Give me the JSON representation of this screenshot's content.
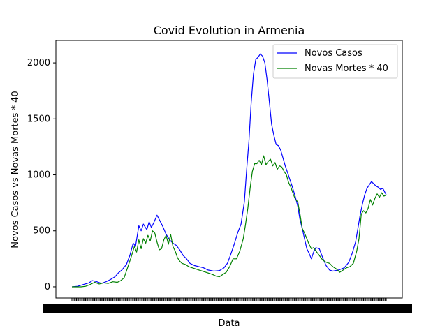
{
  "chart_data": {
    "type": "line",
    "title": "Covid Evolution in Armenia",
    "xlabel": "Data",
    "ylabel": "Novos Casos vs Novas Mortes * 40",
    "ylim": [
      -100,
      2200
    ],
    "yticks": [
      0,
      500,
      1000,
      1500,
      2000
    ],
    "x_range": [
      0,
      270
    ],
    "x_range_note": "x axis is day index; tick labels are dates rendered illegibly overlapping",
    "grid": false,
    "legend_position": "top-right",
    "series": [
      {
        "name": "Novos Casos",
        "color": "#0000ff",
        "points": [
          [
            0,
            0
          ],
          [
            5,
            5
          ],
          [
            10,
            20
          ],
          [
            15,
            35
          ],
          [
            18,
            55
          ],
          [
            22,
            45
          ],
          [
            26,
            30
          ],
          [
            30,
            45
          ],
          [
            34,
            65
          ],
          [
            38,
            90
          ],
          [
            41,
            125
          ],
          [
            44,
            150
          ],
          [
            48,
            200
          ],
          [
            51,
            280
          ],
          [
            54,
            390
          ],
          [
            56,
            360
          ],
          [
            59,
            545
          ],
          [
            61,
            500
          ],
          [
            63,
            560
          ],
          [
            66,
            510
          ],
          [
            68,
            580
          ],
          [
            70,
            530
          ],
          [
            72,
            570
          ],
          [
            75,
            640
          ],
          [
            77,
            600
          ],
          [
            80,
            540
          ],
          [
            83,
            470
          ],
          [
            86,
            420
          ],
          [
            89,
            390
          ],
          [
            92,
            370
          ],
          [
            95,
            330
          ],
          [
            98,
            280
          ],
          [
            101,
            250
          ],
          [
            104,
            210
          ],
          [
            108,
            190
          ],
          [
            112,
            180
          ],
          [
            116,
            170
          ],
          [
            120,
            150
          ],
          [
            125,
            140
          ],
          [
            130,
            145
          ],
          [
            134,
            170
          ],
          [
            137,
            210
          ],
          [
            140,
            290
          ],
          [
            143,
            380
          ],
          [
            146,
            480
          ],
          [
            149,
            560
          ],
          [
            152,
            760
          ],
          [
            154,
            1050
          ],
          [
            156,
            1300
          ],
          [
            158,
            1650
          ],
          [
            160,
            1900
          ],
          [
            162,
            2030
          ],
          [
            164,
            2050
          ],
          [
            166,
            2080
          ],
          [
            168,
            2060
          ],
          [
            170,
            2000
          ],
          [
            172,
            1850
          ],
          [
            174,
            1650
          ],
          [
            176,
            1450
          ],
          [
            178,
            1350
          ],
          [
            180,
            1270
          ],
          [
            182,
            1260
          ],
          [
            184,
            1220
          ],
          [
            186,
            1150
          ],
          [
            188,
            1080
          ],
          [
            190,
            1020
          ],
          [
            192,
            960
          ],
          [
            194,
            900
          ],
          [
            197,
            800
          ],
          [
            199,
            720
          ],
          [
            201,
            600
          ],
          [
            203,
            520
          ],
          [
            205,
            430
          ],
          [
            207,
            340
          ],
          [
            209,
            300
          ],
          [
            211,
            250
          ],
          [
            213,
            310
          ],
          [
            215,
            350
          ],
          [
            218,
            340
          ],
          [
            221,
            260
          ],
          [
            224,
            190
          ],
          [
            227,
            150
          ],
          [
            230,
            140
          ],
          [
            235,
            150
          ],
          [
            240,
            170
          ],
          [
            244,
            220
          ],
          [
            247,
            300
          ],
          [
            250,
            400
          ],
          [
            252,
            520
          ],
          [
            254,
            640
          ],
          [
            256,
            740
          ],
          [
            258,
            820
          ],
          [
            260,
            880
          ],
          [
            262,
            910
          ],
          [
            264,
            940
          ],
          [
            266,
            920
          ],
          [
            268,
            900
          ],
          [
            270,
            890
          ],
          [
            272,
            870
          ],
          [
            274,
            880
          ],
          [
            276,
            840
          ],
          [
            277,
            820
          ]
        ]
      },
      {
        "name": "Novas Mortes * 40",
        "color": "#008000",
        "points": [
          [
            0,
            0
          ],
          [
            8,
            0
          ],
          [
            12,
            5
          ],
          [
            16,
            20
          ],
          [
            20,
            40
          ],
          [
            24,
            25
          ],
          [
            28,
            35
          ],
          [
            32,
            30
          ],
          [
            36,
            45
          ],
          [
            40,
            40
          ],
          [
            43,
            55
          ],
          [
            46,
            80
          ],
          [
            49,
            170
          ],
          [
            52,
            260
          ],
          [
            55,
            360
          ],
          [
            57,
            310
          ],
          [
            59,
            420
          ],
          [
            61,
            340
          ],
          [
            63,
            430
          ],
          [
            65,
            390
          ],
          [
            67,
            460
          ],
          [
            69,
            410
          ],
          [
            71,
            500
          ],
          [
            73,
            480
          ],
          [
            75,
            400
          ],
          [
            77,
            330
          ],
          [
            79,
            340
          ],
          [
            81,
            420
          ],
          [
            83,
            460
          ],
          [
            85,
            380
          ],
          [
            87,
            470
          ],
          [
            89,
            360
          ],
          [
            91,
            320
          ],
          [
            93,
            260
          ],
          [
            95,
            230
          ],
          [
            97,
            210
          ],
          [
            100,
            200
          ],
          [
            103,
            180
          ],
          [
            106,
            170
          ],
          [
            109,
            160
          ],
          [
            112,
            150
          ],
          [
            115,
            140
          ],
          [
            118,
            130
          ],
          [
            121,
            120
          ],
          [
            124,
            110
          ],
          [
            127,
            95
          ],
          [
            130,
            90
          ],
          [
            133,
            110
          ],
          [
            136,
            130
          ],
          [
            139,
            180
          ],
          [
            142,
            250
          ],
          [
            145,
            250
          ],
          [
            148,
            320
          ],
          [
            151,
            430
          ],
          [
            153,
            560
          ],
          [
            155,
            700
          ],
          [
            157,
            880
          ],
          [
            159,
            1030
          ],
          [
            161,
            1100
          ],
          [
            163,
            1100
          ],
          [
            165,
            1130
          ],
          [
            167,
            1090
          ],
          [
            169,
            1170
          ],
          [
            171,
            1090
          ],
          [
            173,
            1120
          ],
          [
            175,
            1140
          ],
          [
            177,
            1080
          ],
          [
            179,
            1110
          ],
          [
            181,
            1050
          ],
          [
            183,
            1080
          ],
          [
            185,
            1070
          ],
          [
            187,
            1030
          ],
          [
            189,
            1000
          ],
          [
            191,
            930
          ],
          [
            193,
            890
          ],
          [
            195,
            830
          ],
          [
            197,
            780
          ],
          [
            199,
            760
          ],
          [
            201,
            650
          ],
          [
            203,
            520
          ],
          [
            205,
            480
          ],
          [
            207,
            430
          ],
          [
            209,
            380
          ],
          [
            211,
            340
          ],
          [
            213,
            350
          ],
          [
            215,
            320
          ],
          [
            218,
            280
          ],
          [
            221,
            240
          ],
          [
            224,
            220
          ],
          [
            227,
            210
          ],
          [
            230,
            180
          ],
          [
            233,
            160
          ],
          [
            236,
            130
          ],
          [
            239,
            150
          ],
          [
            242,
            170
          ],
          [
            245,
            180
          ],
          [
            248,
            210
          ],
          [
            251,
            320
          ],
          [
            253,
            430
          ],
          [
            255,
            650
          ],
          [
            257,
            680
          ],
          [
            259,
            660
          ],
          [
            261,
            700
          ],
          [
            263,
            780
          ],
          [
            265,
            730
          ],
          [
            267,
            790
          ],
          [
            269,
            830
          ],
          [
            271,
            800
          ],
          [
            273,
            840
          ],
          [
            275,
            810
          ],
          [
            277,
            820
          ]
        ]
      }
    ]
  }
}
